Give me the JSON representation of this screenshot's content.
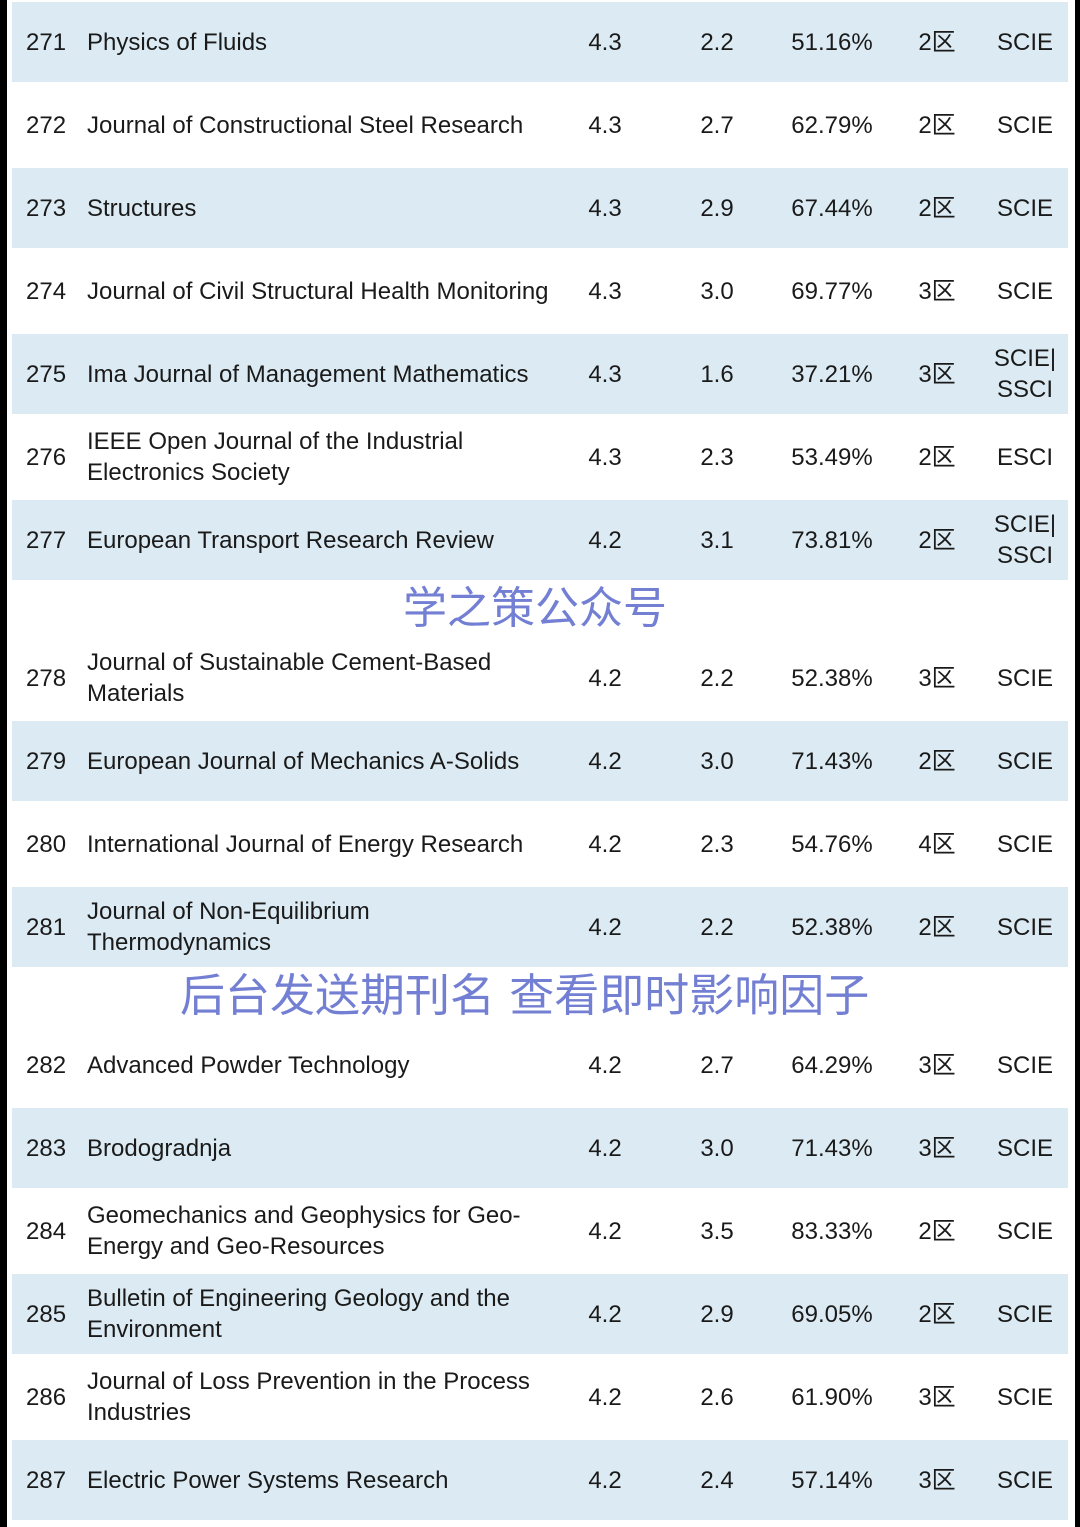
{
  "rows": [
    {
      "no": "271",
      "name": "Physics of Fluids",
      "if": "4.3",
      "q": "2.2",
      "pct": "51.16%",
      "zone": "2区",
      "index": "SCIE"
    },
    {
      "no": "272",
      "name": "Journal of Constructional Steel Research",
      "if": "4.3",
      "q": "2.7",
      "pct": "62.79%",
      "zone": "2区",
      "index": "SCIE"
    },
    {
      "no": "273",
      "name": "Structures",
      "if": "4.3",
      "q": "2.9",
      "pct": "67.44%",
      "zone": "2区",
      "index": "SCIE"
    },
    {
      "no": "274",
      "name": "Journal of Civil Structural Health Monitoring",
      "if": "4.3",
      "q": "3.0",
      "pct": "69.77%",
      "zone": "3区",
      "index": "SCIE"
    },
    {
      "no": "275",
      "name": "Ima Journal of Management Mathematics",
      "if": "4.3",
      "q": "1.6",
      "pct": "37.21%",
      "zone": "3区",
      "index": "SCIE| SSCI"
    },
    {
      "no": "276",
      "name": "IEEE Open Journal of the Industrial Electronics Society",
      "if": "4.3",
      "q": "2.3",
      "pct": "53.49%",
      "zone": "2区",
      "index": "ESCI"
    },
    {
      "no": "277",
      "name": "European Transport Research Review",
      "if": "4.2",
      "q": "3.1",
      "pct": "73.81%",
      "zone": "2区",
      "index": "SCIE| SSCI"
    },
    {
      "no": "278",
      "name": "Journal of Sustainable Cement-Based Materials",
      "if": "4.2",
      "q": "2.2",
      "pct": "52.38%",
      "zone": "3区",
      "index": "SCIE"
    },
    {
      "no": "279",
      "name": "European Journal of Mechanics A-Solids",
      "if": "4.2",
      "q": "3.0",
      "pct": "71.43%",
      "zone": "2区",
      "index": "SCIE"
    },
    {
      "no": "280",
      "name": "International Journal of Energy Research",
      "if": "4.2",
      "q": "2.3",
      "pct": "54.76%",
      "zone": "4区",
      "index": "SCIE"
    },
    {
      "no": "281",
      "name": "Journal of Non-Equilibrium Thermodynamics",
      "if": "4.2",
      "q": "2.2",
      "pct": "52.38%",
      "zone": "2区",
      "index": "SCIE"
    },
    {
      "no": "282",
      "name": "Advanced Powder Technology",
      "if": "4.2",
      "q": "2.7",
      "pct": "64.29%",
      "zone": "3区",
      "index": "SCIE"
    },
    {
      "no": "283",
      "name": "Brodogradnja",
      "if": "4.2",
      "q": "3.0",
      "pct": "71.43%",
      "zone": "3区",
      "index": "SCIE"
    },
    {
      "no": "284",
      "name": "Geomechanics and Geophysics for Geo-Energy and Geo-Resources",
      "if": "4.2",
      "q": "3.5",
      "pct": "83.33%",
      "zone": "2区",
      "index": "SCIE"
    },
    {
      "no": "285",
      "name": "Bulletin of Engineering Geology and the Environment",
      "if": "4.2",
      "q": "2.9",
      "pct": "69.05%",
      "zone": "2区",
      "index": "SCIE"
    },
    {
      "no": "286",
      "name": "Journal of Loss Prevention in the Process Industries",
      "if": "4.2",
      "q": "2.6",
      "pct": "61.90%",
      "zone": "3区",
      "index": "SCIE"
    },
    {
      "no": "287",
      "name": "Electric Power Systems Research",
      "if": "4.2",
      "q": "2.4",
      "pct": "57.14%",
      "zone": "3区",
      "index": "SCIE"
    }
  ],
  "watermarks": {
    "top": "学之策公众号",
    "bottom": "后台发送期刊名 查看即时影响因子"
  },
  "colors": {
    "row_blue": "#dcebf3",
    "row_white": "#ffffff",
    "watermark": "#505fc8"
  }
}
